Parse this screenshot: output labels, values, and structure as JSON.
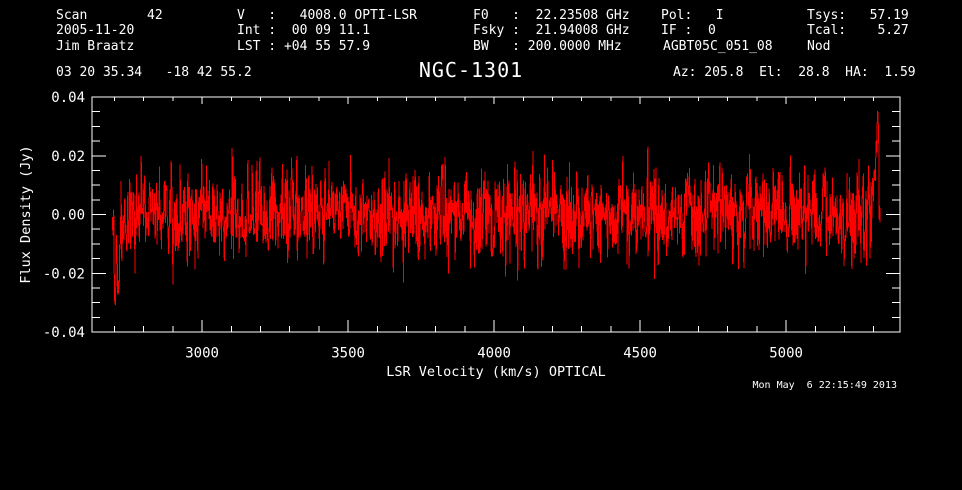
{
  "window": {
    "background": "#000000",
    "foreground": "#ffffff"
  },
  "header": {
    "scan_label": "Scan",
    "scan_value": "42",
    "date": "2005-11-20",
    "observer": "Jim Braatz",
    "velocity": "V   :   4008.0 OPTI-LSR",
    "integration": "Int :  00 09 11.1",
    "lst": "LST : +04 55 57.9",
    "f0": "F0   :  22.23508 GHz",
    "fsky": "Fsky :  21.94008 GHz",
    "bw": "BW   : 200.0000 MHz",
    "pol": "Pol:   I",
    "if": "IF :  0",
    "project": "AGBT05C_051_08",
    "tsys": "Tsys:   57.19",
    "tcal": "Tcal:    5.27",
    "procedure": "Nod",
    "coordinates": "03 20 35.34   -18 42 55.2",
    "source": "NGC-1301",
    "pointing": "Az: 205.8  El:  28.8  HA:  1.59"
  },
  "footer": {
    "timestamp": "Mon May  6 22:15:49 2013"
  },
  "chart_data": {
    "type": "line",
    "title": "NGC-1301",
    "xlabel": "LSR Velocity (km/s) OPTICAL",
    "ylabel": "Flux Density (Jy)",
    "xlim": [
      2623,
      5390
    ],
    "ylim": [
      -0.04,
      0.04
    ],
    "x_ticks": [
      3000,
      3500,
      4000,
      4500,
      5000
    ],
    "x_tick_labels": [
      "3000",
      "3500",
      "4000",
      "4500",
      "5000"
    ],
    "x_minor": {
      "start": 2700,
      "end": 5300,
      "step": 100
    },
    "y_ticks": [
      -0.04,
      -0.02,
      0,
      0.02,
      0.04
    ],
    "y_tick_labels": [
      "-0.04",
      "-0.02",
      "0.00",
      "0.02",
      "0.04"
    ],
    "y_minor": {
      "start": -0.035,
      "end": 0.035,
      "step": 0.005
    },
    "grid": false,
    "legend": false,
    "line_color": "#ff0000",
    "series": {
      "name": "spectrum",
      "description": "Noise-dominated baseline spectrum, no spectral line detected; mean 0.000 Jy, rms approx 0.008 Jy, excursions to +/-0.03 Jy, deep dip at band start and upward spike to +0.031 Jy at band end",
      "x_start": 2693,
      "x_end": 5322,
      "n_points": 1600,
      "baseline": 0.0,
      "noise_sigma": 0.0082,
      "seed": 20051120,
      "left_edge_values": [
        -0.004,
        -0.03,
        -0.012,
        -0.026,
        -0.008
      ],
      "right_edge_values": [
        0.009,
        0.015,
        0.022,
        0.031,
        0.004
      ]
    }
  }
}
